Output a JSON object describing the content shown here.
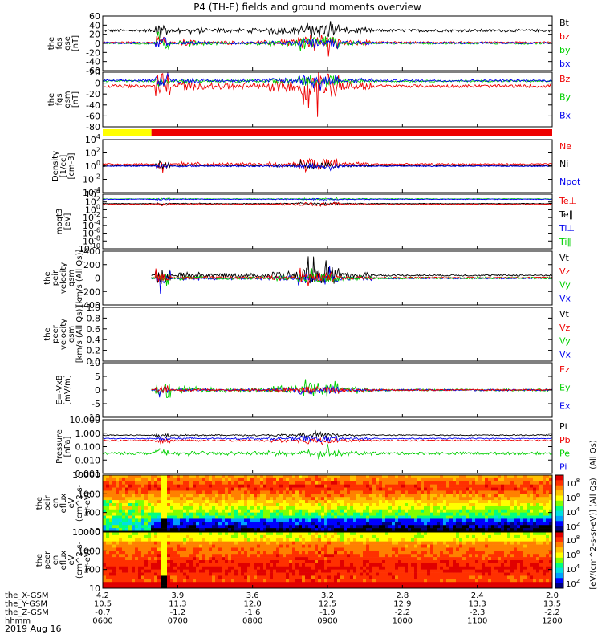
{
  "title": "P4 (TH-E) fields and ground moments overview",
  "date_label": "2019 Aug 16",
  "colors": {
    "black": "#000000",
    "red": "#ee0000",
    "green": "#00d000",
    "blue": "#0000ee",
    "yellow": "#ffff00"
  },
  "chart_data": [
    {
      "type": "line",
      "id": "fgs_gse",
      "ylabel": [
        "the",
        "fgs",
        "gse",
        "[nT]"
      ],
      "yticks": [
        "60",
        "40",
        "20",
        "0",
        "-20",
        "-40",
        "-60"
      ],
      "ylim": [
        -60,
        60
      ],
      "scale": "linear",
      "legend": [
        {
          "name": "Bt",
          "color": "#000000"
        },
        {
          "name": "bz",
          "color": "#ee0000"
        },
        {
          "name": "by",
          "color": "#00d000"
        },
        {
          "name": "bx",
          "color": "#0000ee"
        }
      ],
      "series": [
        {
          "name": "Bt",
          "color": "#000000",
          "base": 28,
          "quiet": 3,
          "active": 15,
          "burst": 18
        },
        {
          "name": "bz",
          "color": "#ee0000",
          "base": 2,
          "quiet": 2,
          "active": 15,
          "burst": 28
        },
        {
          "name": "by",
          "color": "#00d000",
          "base": 0,
          "quiet": 2,
          "active": 12,
          "burst": 18
        },
        {
          "name": "bx",
          "color": "#0000ee",
          "base": 1,
          "quiet": 2,
          "active": 8,
          "burst": 12
        }
      ]
    },
    {
      "type": "line",
      "id": "fgs_gsm",
      "ylabel": [
        "the",
        "fgs",
        "gsm",
        "[nT]"
      ],
      "yticks": [
        "20",
        "0",
        "-20",
        "-40",
        "-60",
        "-80"
      ],
      "ylim": [
        -90,
        20
      ],
      "scale": "linear",
      "legend": [
        {
          "name": "Bz",
          "color": "#ee0000"
        },
        {
          "name": "By",
          "color": "#00d000"
        },
        {
          "name": "Bx",
          "color": "#0000ee"
        }
      ],
      "series": [
        {
          "name": "Bz",
          "color": "#ee0000",
          "base": -8,
          "quiet": 3,
          "active": 25,
          "burst": 50
        },
        {
          "name": "By",
          "color": "#00d000",
          "base": 2,
          "quiet": 2,
          "active": 10,
          "burst": 12
        },
        {
          "name": "Bx",
          "color": "#0000ee",
          "base": 3,
          "quiet": 2,
          "active": 10,
          "burst": 15
        }
      ]
    },
    {
      "type": "line",
      "id": "density",
      "ylabel": [
        "Density",
        "[1/cc]",
        "[cm-3]"
      ],
      "yticks": [
        "10^4",
        "10^2",
        "10^0",
        "10^-2",
        "10^-4"
      ],
      "ylim": [
        -4,
        4
      ],
      "scale": "log",
      "legend": [
        {
          "name": "Ne",
          "color": "#ee0000"
        },
        {
          "name": "Ni",
          "color": "#000000"
        },
        {
          "name": "Npot",
          "color": "#0000ee"
        }
      ],
      "series": [
        {
          "name": "Ne",
          "color": "#ee0000",
          "base": 0.3,
          "quiet": 0.12,
          "active": 0.8,
          "burst": 1.2
        },
        {
          "name": "Ni",
          "color": "#000000",
          "base": 0.1,
          "quiet": 0.08,
          "active": 0.4,
          "burst": 0.8
        },
        {
          "name": "Npot",
          "color": "#0000ee",
          "base": 0.0,
          "quiet": 0.06,
          "active": 0.3,
          "burst": 0.6
        }
      ]
    },
    {
      "type": "line",
      "id": "temperature",
      "ylabel": [
        "moqt3",
        "[eV]"
      ],
      "yticks": [
        "10^4",
        "10^2",
        "10^0",
        "10^-2",
        "10^-4",
        "10^-6",
        "10^-8",
        "10^-10"
      ],
      "ylim": [
        -10,
        5
      ],
      "scale": "log",
      "legend": [
        {
          "name": "Te⊥",
          "color": "#ee0000"
        },
        {
          "name": "Te∥",
          "color": "#000000"
        },
        {
          "name": "Ti⊥",
          "color": "#0000ee"
        },
        {
          "name": "Ti∥",
          "color": "#00d000"
        }
      ],
      "series": [
        {
          "name": "Ti∥",
          "color": "#00d000",
          "base": 3.7,
          "quiet": 0.08,
          "active": 0.2,
          "burst": 0.3
        },
        {
          "name": "Ti⊥",
          "color": "#0000ee",
          "base": 3.6,
          "quiet": 0.08,
          "active": 0.2,
          "burst": 0.3
        },
        {
          "name": "Te∥",
          "color": "#000000",
          "base": 2.4,
          "quiet": 0.08,
          "active": 0.3,
          "burst": 0.4
        },
        {
          "name": "Te⊥",
          "color": "#ee0000",
          "base": 2.2,
          "quiet": 0.12,
          "active": 0.4,
          "burst": 0.5
        }
      ]
    },
    {
      "type": "line",
      "id": "peir_velocity",
      "ylabel": [
        "the",
        "peir",
        "velocity",
        "gsm",
        "[km/s (All Qs)]"
      ],
      "yticks": [
        "400",
        "200",
        "0",
        "-200",
        "-400"
      ],
      "ylim": [
        -400,
        400
      ],
      "scale": "linear",
      "data_start_hour": 6.65,
      "legend": [
        {
          "name": "Vt",
          "color": "#000000"
        },
        {
          "name": "Vz",
          "color": "#ee0000"
        },
        {
          "name": "Vy",
          "color": "#00d000"
        },
        {
          "name": "Vx",
          "color": "#0000ee"
        }
      ],
      "series": [
        {
          "name": "Vt",
          "color": "#000000",
          "base": 40,
          "quiet": 12,
          "active": 120,
          "burst": 220
        },
        {
          "name": "Vx",
          "color": "#0000ee",
          "base": -5,
          "quiet": 10,
          "active": 70,
          "burst": 200
        },
        {
          "name": "Vy",
          "color": "#00d000",
          "base": 0,
          "quiet": 15,
          "active": 60,
          "burst": 120
        },
        {
          "name": "Vz",
          "color": "#ee0000",
          "base": 5,
          "quiet": 10,
          "active": 60,
          "burst": 120
        }
      ]
    },
    {
      "type": "line",
      "id": "peer_velocity",
      "ylabel": [
        "the",
        "peer",
        "velocity",
        "gsm",
        "[km/s (All Qs)]"
      ],
      "yticks": [
        "1.0",
        "0.8",
        "0.6",
        "0.4",
        "0.2",
        "0.0"
      ],
      "ylim": [
        0,
        1
      ],
      "scale": "linear",
      "legend": [
        {
          "name": "Vt",
          "color": "#000000"
        },
        {
          "name": "Vz",
          "color": "#ee0000"
        },
        {
          "name": "Vy",
          "color": "#00d000"
        },
        {
          "name": "Vx",
          "color": "#0000ee"
        }
      ],
      "series": []
    },
    {
      "type": "line",
      "id": "e_field",
      "ylabel": [
        "E=-VxB",
        "[mV/m]"
      ],
      "yticks": [
        "10",
        "5",
        "0",
        "-5",
        "-10"
      ],
      "ylim": [
        -10,
        10
      ],
      "scale": "linear",
      "data_start_hour": 6.65,
      "legend": [
        {
          "name": "Ez",
          "color": "#ee0000"
        },
        {
          "name": "Ey",
          "color": "#00d000"
        },
        {
          "name": "Ex",
          "color": "#0000ee"
        }
      ],
      "series": [
        {
          "name": "Ey",
          "color": "#00d000",
          "base": 0,
          "quiet": 0.4,
          "active": 3,
          "burst": 5
        },
        {
          "name": "Ex",
          "color": "#0000ee",
          "base": 0,
          "quiet": 0.3,
          "active": 1.2,
          "burst": 2
        },
        {
          "name": "Ez",
          "color": "#ee0000",
          "base": 0,
          "quiet": 0.3,
          "active": 1.2,
          "burst": 2
        }
      ]
    },
    {
      "type": "line",
      "id": "pressure",
      "ylabel": [
        "Pressure",
        "[nPa]"
      ],
      "yticks": [
        "10.000",
        "1.000",
        "0.100",
        "0.010",
        "0.001"
      ],
      "ylim": [
        -3,
        1
      ],
      "scale": "log",
      "legend": [
        {
          "name": "Pt",
          "color": "#000000"
        },
        {
          "name": "Pb",
          "color": "#ee0000"
        },
        {
          "name": "Pe",
          "color": "#00d000"
        },
        {
          "name": "Pi",
          "color": "#0000ee"
        }
      ],
      "right_label": "(All Qs)",
      "series": [
        {
          "name": "Pt",
          "color": "#000000",
          "base": -0.15,
          "quiet": 0.04,
          "active": 0.15,
          "burst": 0.2
        },
        {
          "name": "Pb",
          "color": "#ee0000",
          "base": -0.55,
          "quiet": 0.05,
          "active": 0.2,
          "burst": 0.3
        },
        {
          "name": "Pi",
          "color": "#0000ee",
          "base": -0.4,
          "quiet": 0.04,
          "active": 0.2,
          "burst": 0.25
        },
        {
          "name": "Pe",
          "color": "#00d000",
          "base": -1.5,
          "quiet": 0.1,
          "active": 0.3,
          "burst": 0.4
        }
      ]
    },
    {
      "type": "heatmap",
      "id": "peir_eflux",
      "ylabel": [
        "the",
        "peir",
        "en",
        "eflux",
        "eV",
        "(cm^2-s-",
        "sr-eV)"
      ],
      "yticks": [
        "10000",
        "1000",
        "100",
        "10"
      ],
      "ylim": [
        1,
        4.3
      ],
      "scale": "log",
      "colorbar_ticks": [
        "10^8",
        "10^6",
        "10^4",
        "10^2"
      ],
      "colorbar_label": "[eV/(cm^2-s-sr-eV)] (All Qs)"
    },
    {
      "type": "heatmap",
      "id": "peer_eflux",
      "ylabel": [
        "the",
        "peer",
        "en",
        "eflux",
        "eV",
        "(cm^2-s-",
        "sr-eV)"
      ],
      "yticks": [
        "10000",
        "1000",
        "100",
        "10"
      ],
      "ylim": [
        0.9,
        4.3
      ],
      "scale": "log",
      "colorbar_ticks": [
        "10^8",
        "10^6",
        "10^4",
        "10^2"
      ],
      "colorbar_label": "[eV/(cm^2-s-sr-eV)]"
    }
  ],
  "flag_bar": {
    "segments": [
      {
        "start": 6.0,
        "end": 6.65,
        "color": "#ffff00"
      },
      {
        "start": 6.65,
        "end": 12.0,
        "color": "#ee0000"
      }
    ]
  },
  "x_axis": {
    "range": [
      6.0,
      12.0
    ],
    "ticks_hours": [
      6.0,
      7.0,
      8.0,
      9.0,
      10.0,
      11.0,
      12.0
    ],
    "rows": [
      {
        "name": "the_X-GSM",
        "values": [
          "4.2",
          "3.9",
          "3.6",
          "3.2",
          "2.8",
          "2.4",
          "2.0"
        ]
      },
      {
        "name": "the_Y-GSM",
        "values": [
          "10.5",
          "11.3",
          "12.0",
          "12.5",
          "12.9",
          "13.3",
          "13.5"
        ]
      },
      {
        "name": "the_Z-GSM",
        "values": [
          "-0.7",
          "-1.2",
          "-1.6",
          "-1.9",
          "-2.2",
          "-2.3",
          "-2.2"
        ]
      },
      {
        "name": "hhmm",
        "values": [
          "0600",
          "0700",
          "0800",
          "0900",
          "1000",
          "1100",
          "1200"
        ]
      }
    ]
  }
}
